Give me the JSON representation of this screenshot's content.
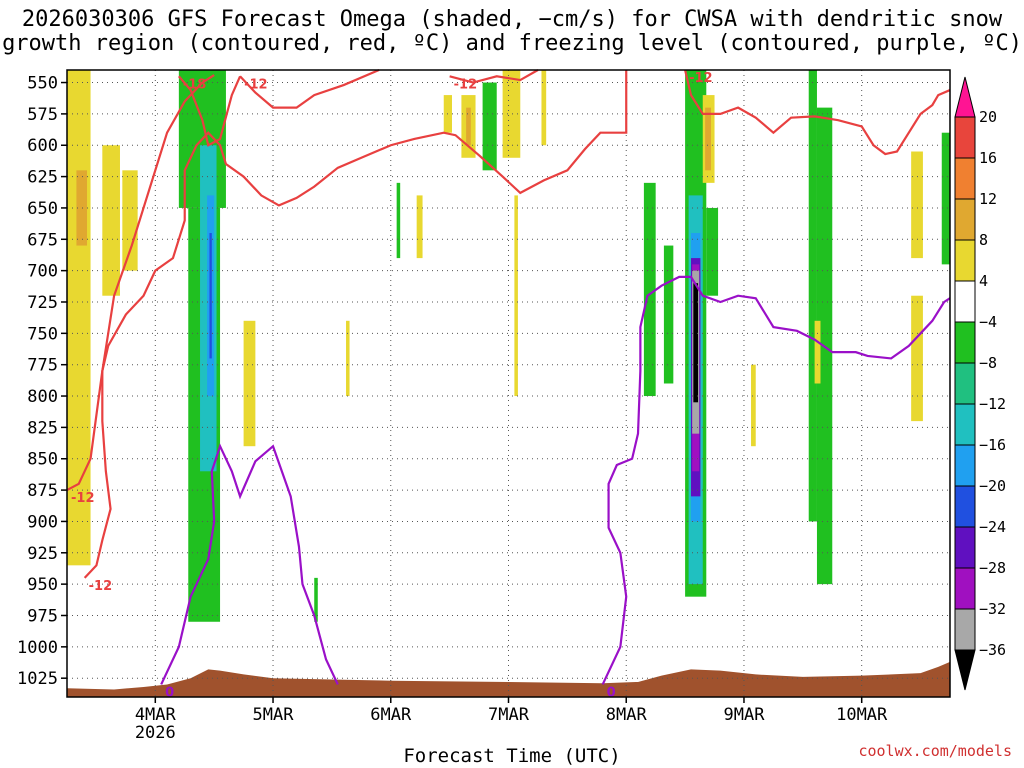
{
  "title": {
    "line1": "2026030306 GFS Forecast Omega (shaded, −cm/s) for CWSA with dendritic snow",
    "line2": "growth region (contoured, red, ºC) and freezing level (contoured, purple, ºC)"
  },
  "credit": "coolwx.com/models",
  "chart_data": {
    "type": "heatmap",
    "title": "2026030306 GFS Forecast Omega (shaded, −cm/s) for CWSA with dendritic snow growth region (contoured, red, ºC) and freezing level (contoured, purple, ºC)",
    "xlabel": "Forecast Time (UTC)",
    "ylabel": "",
    "x_ticks": [
      {
        "label": "4MAR",
        "sub": "2026",
        "day": 4
      },
      {
        "label": "5MAR",
        "sub": "",
        "day": 5
      },
      {
        "label": "6MAR",
        "sub": "",
        "day": 6
      },
      {
        "label": "7MAR",
        "sub": "",
        "day": 7
      },
      {
        "label": "8MAR",
        "sub": "",
        "day": 8
      },
      {
        "label": "9MAR",
        "sub": "",
        "day": 9
      },
      {
        "label": "10MAR",
        "sub": "",
        "day": 10
      }
    ],
    "xlim": [
      3.25,
      10.75
    ],
    "y_ticks": [
      "550",
      "575",
      "600",
      "625",
      "650",
      "675",
      "700",
      "725",
      "750",
      "775",
      "800",
      "825",
      "850",
      "875",
      "900",
      "925",
      "950",
      "975",
      "1000",
      "1025"
    ],
    "ylim": [
      540,
      1040
    ],
    "grid": true,
    "colorbar": {
      "ticks": [
        "20",
        "16",
        "12",
        "8",
        "4",
        "−4",
        "−8",
        "−12",
        "−16",
        "−20",
        "−24",
        "−28",
        "−32",
        "−36"
      ],
      "colors": [
        "#ff1493",
        "#e8453c",
        "#f08030",
        "#e0a830",
        "#e8d830",
        "#ffffff",
        "#20c020",
        "#20c080",
        "#20c0c0",
        "#20a0f0",
        "#2050e0",
        "#6010c0",
        "#a010c0",
        "#a8a8a8",
        "#000000"
      ]
    },
    "omega_regions": [
      {
        "color": "#e8d830",
        "t0": 3.25,
        "t1": 3.45,
        "p0": 540,
        "p1": 935
      },
      {
        "color": "#e0a830",
        "t0": 3.33,
        "t1": 3.42,
        "p0": 620,
        "p1": 680
      },
      {
        "color": "#e8d830",
        "t0": 3.55,
        "t1": 3.7,
        "p0": 600,
        "p1": 720
      },
      {
        "color": "#e8d830",
        "t0": 3.72,
        "t1": 3.85,
        "p0": 620,
        "p1": 700
      },
      {
        "color": "#20c020",
        "t0": 4.2,
        "t1": 4.6,
        "p0": 540,
        "p1": 650
      },
      {
        "color": "#20c020",
        "t0": 4.28,
        "t1": 4.55,
        "p0": 650,
        "p1": 980
      },
      {
        "color": "#20c0c0",
        "t0": 4.38,
        "t1": 4.52,
        "p0": 600,
        "p1": 860
      },
      {
        "color": "#20a0f0",
        "t0": 4.44,
        "t1": 4.5,
        "p0": 640,
        "p1": 800
      },
      {
        "color": "#2050e0",
        "t0": 4.46,
        "t1": 4.48,
        "p0": 670,
        "p1": 770
      },
      {
        "color": "#e8d830",
        "t0": 4.75,
        "t1": 4.85,
        "p0": 740,
        "p1": 840
      },
      {
        "color": "#20c020",
        "t0": 5.35,
        "t1": 5.38,
        "p0": 945,
        "p1": 980
      },
      {
        "color": "#e8d830",
        "t0": 5.62,
        "t1": 5.65,
        "p0": 740,
        "p1": 800
      },
      {
        "color": "#20c020",
        "t0": 6.05,
        "t1": 6.08,
        "p0": 630,
        "p1": 690
      },
      {
        "color": "#e8d830",
        "t0": 6.22,
        "t1": 6.27,
        "p0": 640,
        "p1": 690
      },
      {
        "color": "#e8d830",
        "t0": 6.45,
        "t1": 6.52,
        "p0": 560,
        "p1": 590
      },
      {
        "color": "#e8d830",
        "t0": 6.6,
        "t1": 6.72,
        "p0": 560,
        "p1": 610
      },
      {
        "color": "#e0a830",
        "t0": 6.64,
        "t1": 6.68,
        "p0": 570,
        "p1": 600
      },
      {
        "color": "#20c020",
        "t0": 6.78,
        "t1": 6.9,
        "p0": 550,
        "p1": 620
      },
      {
        "color": "#e8d830",
        "t0": 6.95,
        "t1": 7.1,
        "p0": 540,
        "p1": 610
      },
      {
        "color": "#e8d830",
        "t0": 7.05,
        "t1": 7.08,
        "p0": 640,
        "p1": 800
      },
      {
        "color": "#e8d830",
        "t0": 7.28,
        "t1": 7.32,
        "p0": 540,
        "p1": 600
      },
      {
        "color": "#20c020",
        "t0": 8.15,
        "t1": 8.25,
        "p0": 630,
        "p1": 800
      },
      {
        "color": "#20c020",
        "t0": 8.32,
        "t1": 8.4,
        "p0": 680,
        "p1": 790
      },
      {
        "color": "#20c020",
        "t0": 8.5,
        "t1": 8.68,
        "p0": 540,
        "p1": 960
      },
      {
        "color": "#20c020",
        "t0": 8.68,
        "t1": 8.78,
        "p0": 650,
        "p1": 720
      },
      {
        "color": "#e8d830",
        "t0": 8.65,
        "t1": 8.75,
        "p0": 560,
        "p1": 630
      },
      {
        "color": "#e0a830",
        "t0": 8.67,
        "t1": 8.72,
        "p0": 570,
        "p1": 620
      },
      {
        "color": "#20c0c0",
        "t0": 8.53,
        "t1": 8.65,
        "p0": 640,
        "p1": 950
      },
      {
        "color": "#20a0f0",
        "t0": 8.55,
        "t1": 8.63,
        "p0": 670,
        "p1": 900
      },
      {
        "color": "#6010c0",
        "t0": 8.55,
        "t1": 8.63,
        "p0": 690,
        "p1": 880
      },
      {
        "color": "#a010c0",
        "t0": 8.56,
        "t1": 8.62,
        "p0": 695,
        "p1": 860
      },
      {
        "color": "#a8a8a8",
        "t0": 8.56,
        "t1": 8.62,
        "p0": 700,
        "p1": 830
      },
      {
        "color": "#000000",
        "t0": 8.57,
        "t1": 8.61,
        "p0": 710,
        "p1": 805
      },
      {
        "color": "#20c020",
        "t0": 9.55,
        "t1": 9.62,
        "p0": 540,
        "p1": 900
      },
      {
        "color": "#20c020",
        "t0": 9.62,
        "t1": 9.75,
        "p0": 570,
        "p1": 950
      },
      {
        "color": "#e8d830",
        "t0": 9.6,
        "t1": 9.65,
        "p0": 740,
        "p1": 790
      },
      {
        "color": "#e8d830",
        "t0": 9.06,
        "t1": 9.1,
        "p0": 775,
        "p1": 840
      },
      {
        "color": "#e8d830",
        "t0": 10.42,
        "t1": 10.52,
        "p0": 605,
        "p1": 690
      },
      {
        "color": "#e8d830",
        "t0": 10.42,
        "t1": 10.52,
        "p0": 720,
        "p1": 820
      },
      {
        "color": "#20c020",
        "t0": 10.68,
        "t1": 10.75,
        "p0": 590,
        "p1": 695
      }
    ],
    "terrain": {
      "color": "#a0522d",
      "points": [
        [
          3.25,
          1033
        ],
        [
          3.65,
          1034
        ],
        [
          3.9,
          1032
        ],
        [
          4.1,
          1030
        ],
        [
          4.3,
          1025
        ],
        [
          4.45,
          1018
        ],
        [
          4.55,
          1019
        ],
        [
          4.75,
          1022
        ],
        [
          5.0,
          1025
        ],
        [
          5.5,
          1026
        ],
        [
          6.0,
          1027
        ],
        [
          7.0,
          1028
        ],
        [
          7.8,
          1029
        ],
        [
          8.1,
          1028
        ],
        [
          8.3,
          1023
        ],
        [
          8.55,
          1018
        ],
        [
          8.8,
          1019
        ],
        [
          9.1,
          1022
        ],
        [
          9.5,
          1024
        ],
        [
          10.0,
          1023
        ],
        [
          10.5,
          1021
        ],
        [
          10.65,
          1016
        ],
        [
          10.75,
          1012
        ]
      ]
    },
    "red_contours": [
      {
        "label": "-12",
        "points": [
          [
            3.25,
            875
          ],
          [
            3.35,
            870
          ],
          [
            3.45,
            850
          ],
          [
            3.55,
            780
          ],
          [
            3.65,
            720
          ],
          [
            3.8,
            680
          ],
          [
            4.0,
            620
          ],
          [
            4.1,
            590
          ],
          [
            4.25,
            565
          ],
          [
            4.4,
            550
          ],
          [
            4.5,
            544
          ]
        ]
      },
      {
        "label": "-12",
        "points": [
          [
            3.4,
            945
          ],
          [
            3.5,
            935
          ],
          [
            3.55,
            915
          ],
          [
            3.62,
            890
          ],
          [
            3.58,
            860
          ],
          [
            3.55,
            820
          ],
          [
            3.55,
            780
          ],
          [
            3.6,
            760
          ],
          [
            3.75,
            735
          ],
          [
            3.9,
            720
          ],
          [
            4.0,
            700
          ],
          [
            4.15,
            690
          ],
          [
            4.25,
            660
          ],
          [
            4.25,
            620
          ],
          [
            4.35,
            600
          ],
          [
            4.45,
            590
          ],
          [
            4.55,
            600
          ],
          [
            4.6,
            615
          ],
          [
            4.75,
            625
          ],
          [
            4.9,
            640
          ],
          [
            5.05,
            648
          ],
          [
            5.2,
            642
          ],
          [
            5.35,
            633
          ],
          [
            5.55,
            618
          ],
          [
            5.75,
            610
          ],
          [
            6.0,
            600
          ],
          [
            6.2,
            595
          ],
          [
            6.45,
            590
          ],
          [
            6.55,
            592
          ],
          [
            6.75,
            608
          ],
          [
            6.95,
            625
          ],
          [
            7.1,
            638
          ],
          [
            7.3,
            628
          ],
          [
            7.5,
            620
          ],
          [
            7.65,
            603
          ],
          [
            7.78,
            590
          ],
          [
            7.9,
            590
          ],
          [
            8.0,
            590
          ],
          [
            8.0,
            540
          ]
        ]
      },
      {
        "label": "-18",
        "points": [
          [
            4.2,
            545
          ],
          [
            4.3,
            556
          ],
          [
            4.4,
            580
          ],
          [
            4.45,
            600
          ],
          [
            4.55,
            595
          ],
          [
            4.65,
            560
          ],
          [
            4.72,
            545
          ]
        ]
      },
      {
        "label": "-12",
        "points": [
          [
            4.72,
            545
          ],
          [
            4.85,
            558
          ],
          [
            5.0,
            570
          ],
          [
            5.2,
            570
          ],
          [
            5.35,
            560
          ],
          [
            5.6,
            552
          ],
          [
            5.9,
            540
          ]
        ]
      },
      {
        "label": "-12",
        "points": [
          [
            6.5,
            545
          ],
          [
            6.7,
            550
          ],
          [
            6.9,
            545
          ],
          [
            7.1,
            548
          ],
          [
            7.25,
            540
          ]
        ]
      },
      {
        "label": "-12",
        "points": [
          [
            8.5,
            540
          ],
          [
            8.55,
            560
          ],
          [
            8.65,
            575
          ],
          [
            8.8,
            575
          ],
          [
            8.95,
            570
          ],
          [
            9.1,
            578
          ],
          [
            9.25,
            590
          ],
          [
            9.4,
            578
          ],
          [
            9.6,
            577
          ],
          [
            9.8,
            580
          ],
          [
            10.0,
            585
          ],
          [
            10.1,
            600
          ],
          [
            10.2,
            607
          ],
          [
            10.3,
            605
          ],
          [
            10.4,
            590
          ],
          [
            10.5,
            575
          ],
          [
            10.6,
            568
          ],
          [
            10.65,
            560
          ],
          [
            10.75,
            556
          ]
        ]
      }
    ],
    "purple_contours": [
      {
        "label": "0",
        "points": [
          [
            4.05,
            1030
          ],
          [
            4.2,
            1000
          ],
          [
            4.3,
            960
          ],
          [
            4.45,
            930
          ],
          [
            4.5,
            900
          ],
          [
            4.48,
            860
          ],
          [
            4.55,
            840
          ],
          [
            4.65,
            860
          ],
          [
            4.72,
            880
          ],
          [
            4.85,
            852
          ],
          [
            5.0,
            840
          ],
          [
            5.15,
            880
          ],
          [
            5.22,
            920
          ],
          [
            5.25,
            950
          ],
          [
            5.35,
            975
          ],
          [
            5.45,
            1010
          ],
          [
            5.55,
            1030
          ]
        ]
      },
      {
        "label": "0",
        "points": [
          [
            7.8,
            1030
          ],
          [
            7.95,
            1000
          ],
          [
            8.0,
            960
          ],
          [
            7.95,
            925
          ],
          [
            7.85,
            905
          ],
          [
            7.85,
            870
          ],
          [
            7.92,
            855
          ],
          [
            8.05,
            850
          ],
          [
            8.1,
            830
          ],
          [
            8.12,
            780
          ],
          [
            8.12,
            745
          ],
          [
            8.18,
            720
          ],
          [
            8.3,
            712
          ],
          [
            8.45,
            705
          ],
          [
            8.55,
            705
          ],
          [
            8.65,
            720
          ],
          [
            8.8,
            725
          ],
          [
            8.95,
            720
          ],
          [
            9.1,
            722
          ],
          [
            9.25,
            745
          ],
          [
            9.45,
            748
          ],
          [
            9.6,
            755
          ],
          [
            9.75,
            765
          ],
          [
            9.95,
            765
          ],
          [
            10.05,
            768
          ],
          [
            10.25,
            770
          ],
          [
            10.4,
            760
          ],
          [
            10.6,
            740
          ],
          [
            10.7,
            725
          ],
          [
            10.75,
            722
          ]
        ]
      }
    ]
  }
}
